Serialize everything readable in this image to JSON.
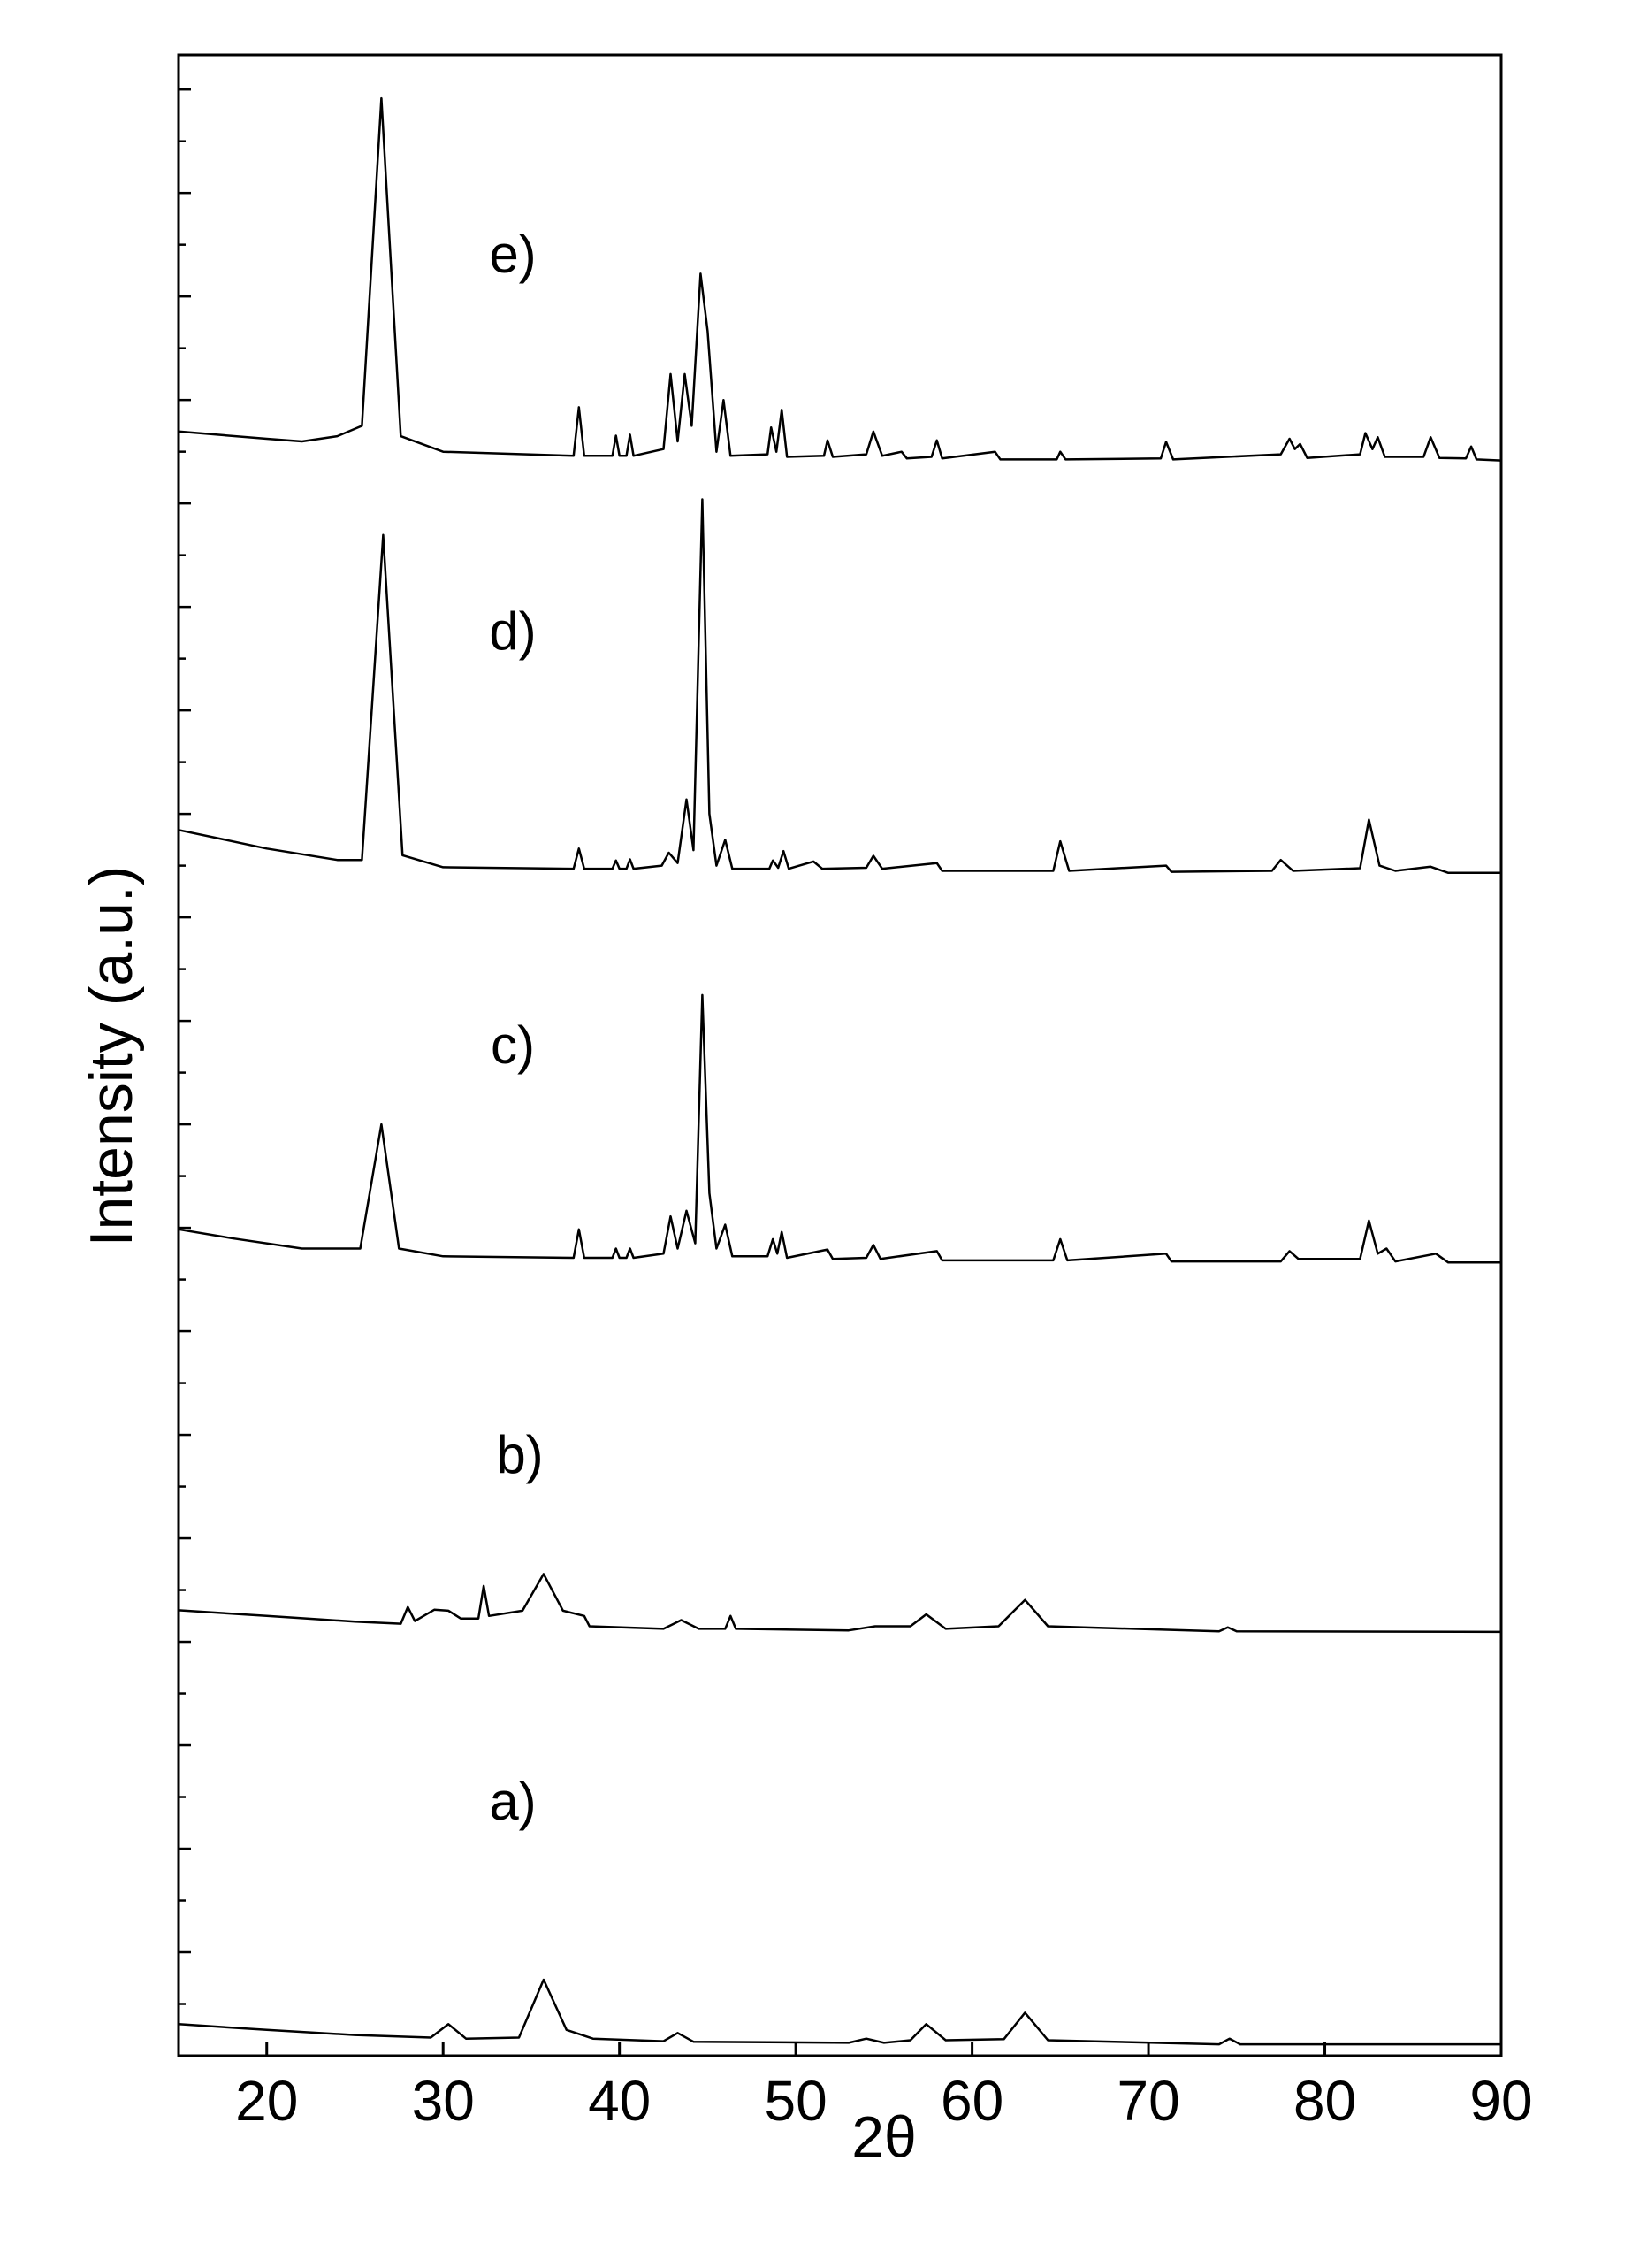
{
  "chart_data": {
    "type": "line",
    "xlabel": "2θ",
    "ylabel": "Intensity (a.u.)",
    "xlim": [
      15,
      90
    ],
    "xticks": [
      20,
      30,
      40,
      50,
      60,
      70,
      80,
      90
    ],
    "ylim": [
      0,
      38.67
    ],
    "yticks": [
      1,
      2,
      3,
      4,
      5,
      6,
      7,
      8,
      9,
      10,
      11,
      12,
      13,
      14,
      15,
      16,
      17,
      18,
      19,
      20,
      21,
      22,
      23,
      24,
      25,
      26,
      27,
      28,
      29,
      30,
      31,
      32,
      33,
      34,
      35,
      36,
      37,
      38
    ],
    "color": "#000000",
    "series": [
      {
        "name": "a)",
        "x": [
          15,
          20,
          25,
          29.3,
          30.3,
          31.3,
          34.3,
          35.7,
          37,
          38.5,
          42.5,
          43.3,
          44.2,
          53,
          54,
          55,
          56.5,
          57.4,
          58.5,
          61.8,
          63,
          64.3,
          74,
          74.6,
          75.2,
          90
        ],
        "values": [
          0.61,
          0.5,
          0.4,
          0.35,
          0.61,
          0.33,
          0.35,
          1.47,
          0.5,
          0.33,
          0.28,
          0.44,
          0.27,
          0.25,
          0.33,
          0.25,
          0.3,
          0.61,
          0.3,
          0.32,
          0.83,
          0.3,
          0.22,
          0.33,
          0.22,
          0.22
        ]
      },
      {
        "name": "b)",
        "x": [
          15,
          20,
          25,
          27.6,
          28,
          28.4,
          29.5,
          30.3,
          31,
          32,
          32.3,
          32.6,
          34.5,
          35.7,
          36.8,
          38,
          38.3,
          42.5,
          43.5,
          44.5,
          46,
          46.3,
          46.6,
          53,
          54.5,
          56.5,
          57.4,
          58.5,
          61.5,
          63,
          64.3,
          74,
          74.5,
          75,
          90
        ],
        "values": [
          8.61,
          8.5,
          8.39,
          8.35,
          8.67,
          8.4,
          8.62,
          8.6,
          8.45,
          8.45,
          9.08,
          8.5,
          8.6,
          9.31,
          8.6,
          8.5,
          8.3,
          8.25,
          8.42,
          8.25,
          8.25,
          8.5,
          8.25,
          8.22,
          8.3,
          8.3,
          8.53,
          8.25,
          8.3,
          8.81,
          8.3,
          8.2,
          8.28,
          8.2,
          8.19
        ]
      },
      {
        "name": "c)",
        "x": [
          15,
          18,
          22,
          25.3,
          26.5,
          27.5,
          30,
          37.4,
          37.7,
          38,
          39.6,
          39.8,
          40,
          40.4,
          40.6,
          40.8,
          42.5,
          42.9,
          43.3,
          43.8,
          44.3,
          44.7,
          45.1,
          45.5,
          46,
          46.4,
          48.4,
          48.7,
          48.95,
          49.2,
          49.5,
          51.8,
          52.1,
          54,
          54.4,
          54.8,
          58,
          58.3,
          64.6,
          65,
          65.4,
          71,
          71.3,
          77.5,
          78,
          78.5,
          82,
          82.5,
          83,
          83.5,
          84,
          86.3,
          87,
          90
        ],
        "values": [
          15.97,
          15.8,
          15.6,
          15.6,
          18.0,
          15.6,
          15.45,
          15.42,
          15.97,
          15.42,
          15.42,
          15.6,
          15.42,
          15.42,
          15.6,
          15.42,
          15.5,
          16.22,
          15.6,
          16.33,
          15.7,
          20.5,
          16.67,
          15.6,
          16.06,
          15.45,
          15.45,
          15.78,
          15.5,
          15.92,
          15.42,
          15.58,
          15.4,
          15.42,
          15.67,
          15.4,
          15.55,
          15.37,
          15.37,
          15.78,
          15.37,
          15.5,
          15.35,
          15.35,
          15.55,
          15.4,
          15.4,
          16.14,
          15.5,
          15.6,
          15.35,
          15.5,
          15.33,
          15.33
        ]
      },
      {
        "name": "d)",
        "x": [
          15,
          20,
          24,
          25.4,
          26.6,
          27.7,
          30,
          37.4,
          37.7,
          38,
          39.6,
          39.8,
          40,
          40.4,
          40.6,
          40.8,
          42.4,
          42.8,
          43.3,
          43.8,
          44.2,
          44.7,
          45.1,
          45.5,
          46,
          46.4,
          48.5,
          48.7,
          49.0,
          49.3,
          49.6,
          51,
          51.5,
          54,
          54.4,
          54.9,
          58,
          58.3,
          64.6,
          65,
          65.5,
          71,
          71.3,
          77,
          77.5,
          78.2,
          82,
          82.5,
          83.1,
          84,
          86,
          87,
          90
        ],
        "values": [
          23.69,
          23.33,
          23.11,
          23.11,
          29.39,
          23.2,
          22.97,
          22.94,
          23.33,
          22.94,
          22.94,
          23.1,
          22.94,
          22.94,
          23.12,
          22.94,
          23.0,
          23.25,
          23.05,
          24.28,
          23.3,
          30.08,
          24.0,
          23.0,
          23.5,
          22.94,
          22.94,
          23.1,
          22.96,
          23.28,
          22.94,
          23.08,
          22.94,
          22.96,
          23.19,
          22.94,
          23.05,
          22.9,
          22.9,
          23.47,
          22.9,
          23.0,
          22.88,
          22.9,
          23.11,
          22.9,
          22.95,
          23.89,
          23.0,
          22.9,
          22.98,
          22.86,
          22.86
        ]
      },
      {
        "name": "e)",
        "x": [
          15,
          20,
          22,
          24,
          25.4,
          26.5,
          27.6,
          30,
          37.4,
          37.7,
          38,
          39.6,
          39.8,
          40,
          40.4,
          40.6,
          40.8,
          42.5,
          42.9,
          43.3,
          43.7,
          44.1,
          44.6,
          45.0,
          45.5,
          45.9,
          46.3,
          48.4,
          48.6,
          48.9,
          49.2,
          49.5,
          51.6,
          51.8,
          52.1,
          54,
          54.4,
          54.9,
          56,
          56.3,
          57.7,
          58,
          58.3,
          61.3,
          61.6,
          64.8,
          65,
          65.3,
          70.7,
          71,
          71.4,
          77.5,
          78,
          78.3,
          78.6,
          79,
          82,
          82.3,
          82.7,
          83,
          83.4,
          85.6,
          86,
          86.5,
          88,
          88.3,
          88.6,
          90
        ],
        "values": [
          31.39,
          31.25,
          31.2,
          31.3,
          31.5,
          37.83,
          31.3,
          31.0,
          30.92,
          31.86,
          30.92,
          30.92,
          31.31,
          30.92,
          30.92,
          31.33,
          30.92,
          31.05,
          32.5,
          31.2,
          32.5,
          31.5,
          34.44,
          33.33,
          31.0,
          32.0,
          30.92,
          30.95,
          31.47,
          31.0,
          31.81,
          30.9,
          30.92,
          31.22,
          30.9,
          30.95,
          31.39,
          30.92,
          31.0,
          30.87,
          30.9,
          31.22,
          30.87,
          31.0,
          30.85,
          30.85,
          31.0,
          30.85,
          30.87,
          31.19,
          30.85,
          30.95,
          31.25,
          31.05,
          31.15,
          30.88,
          30.95,
          31.36,
          31.05,
          31.28,
          30.9,
          30.9,
          31.28,
          30.88,
          30.87,
          31.1,
          30.85,
          30.83
        ]
      }
    ]
  }
}
